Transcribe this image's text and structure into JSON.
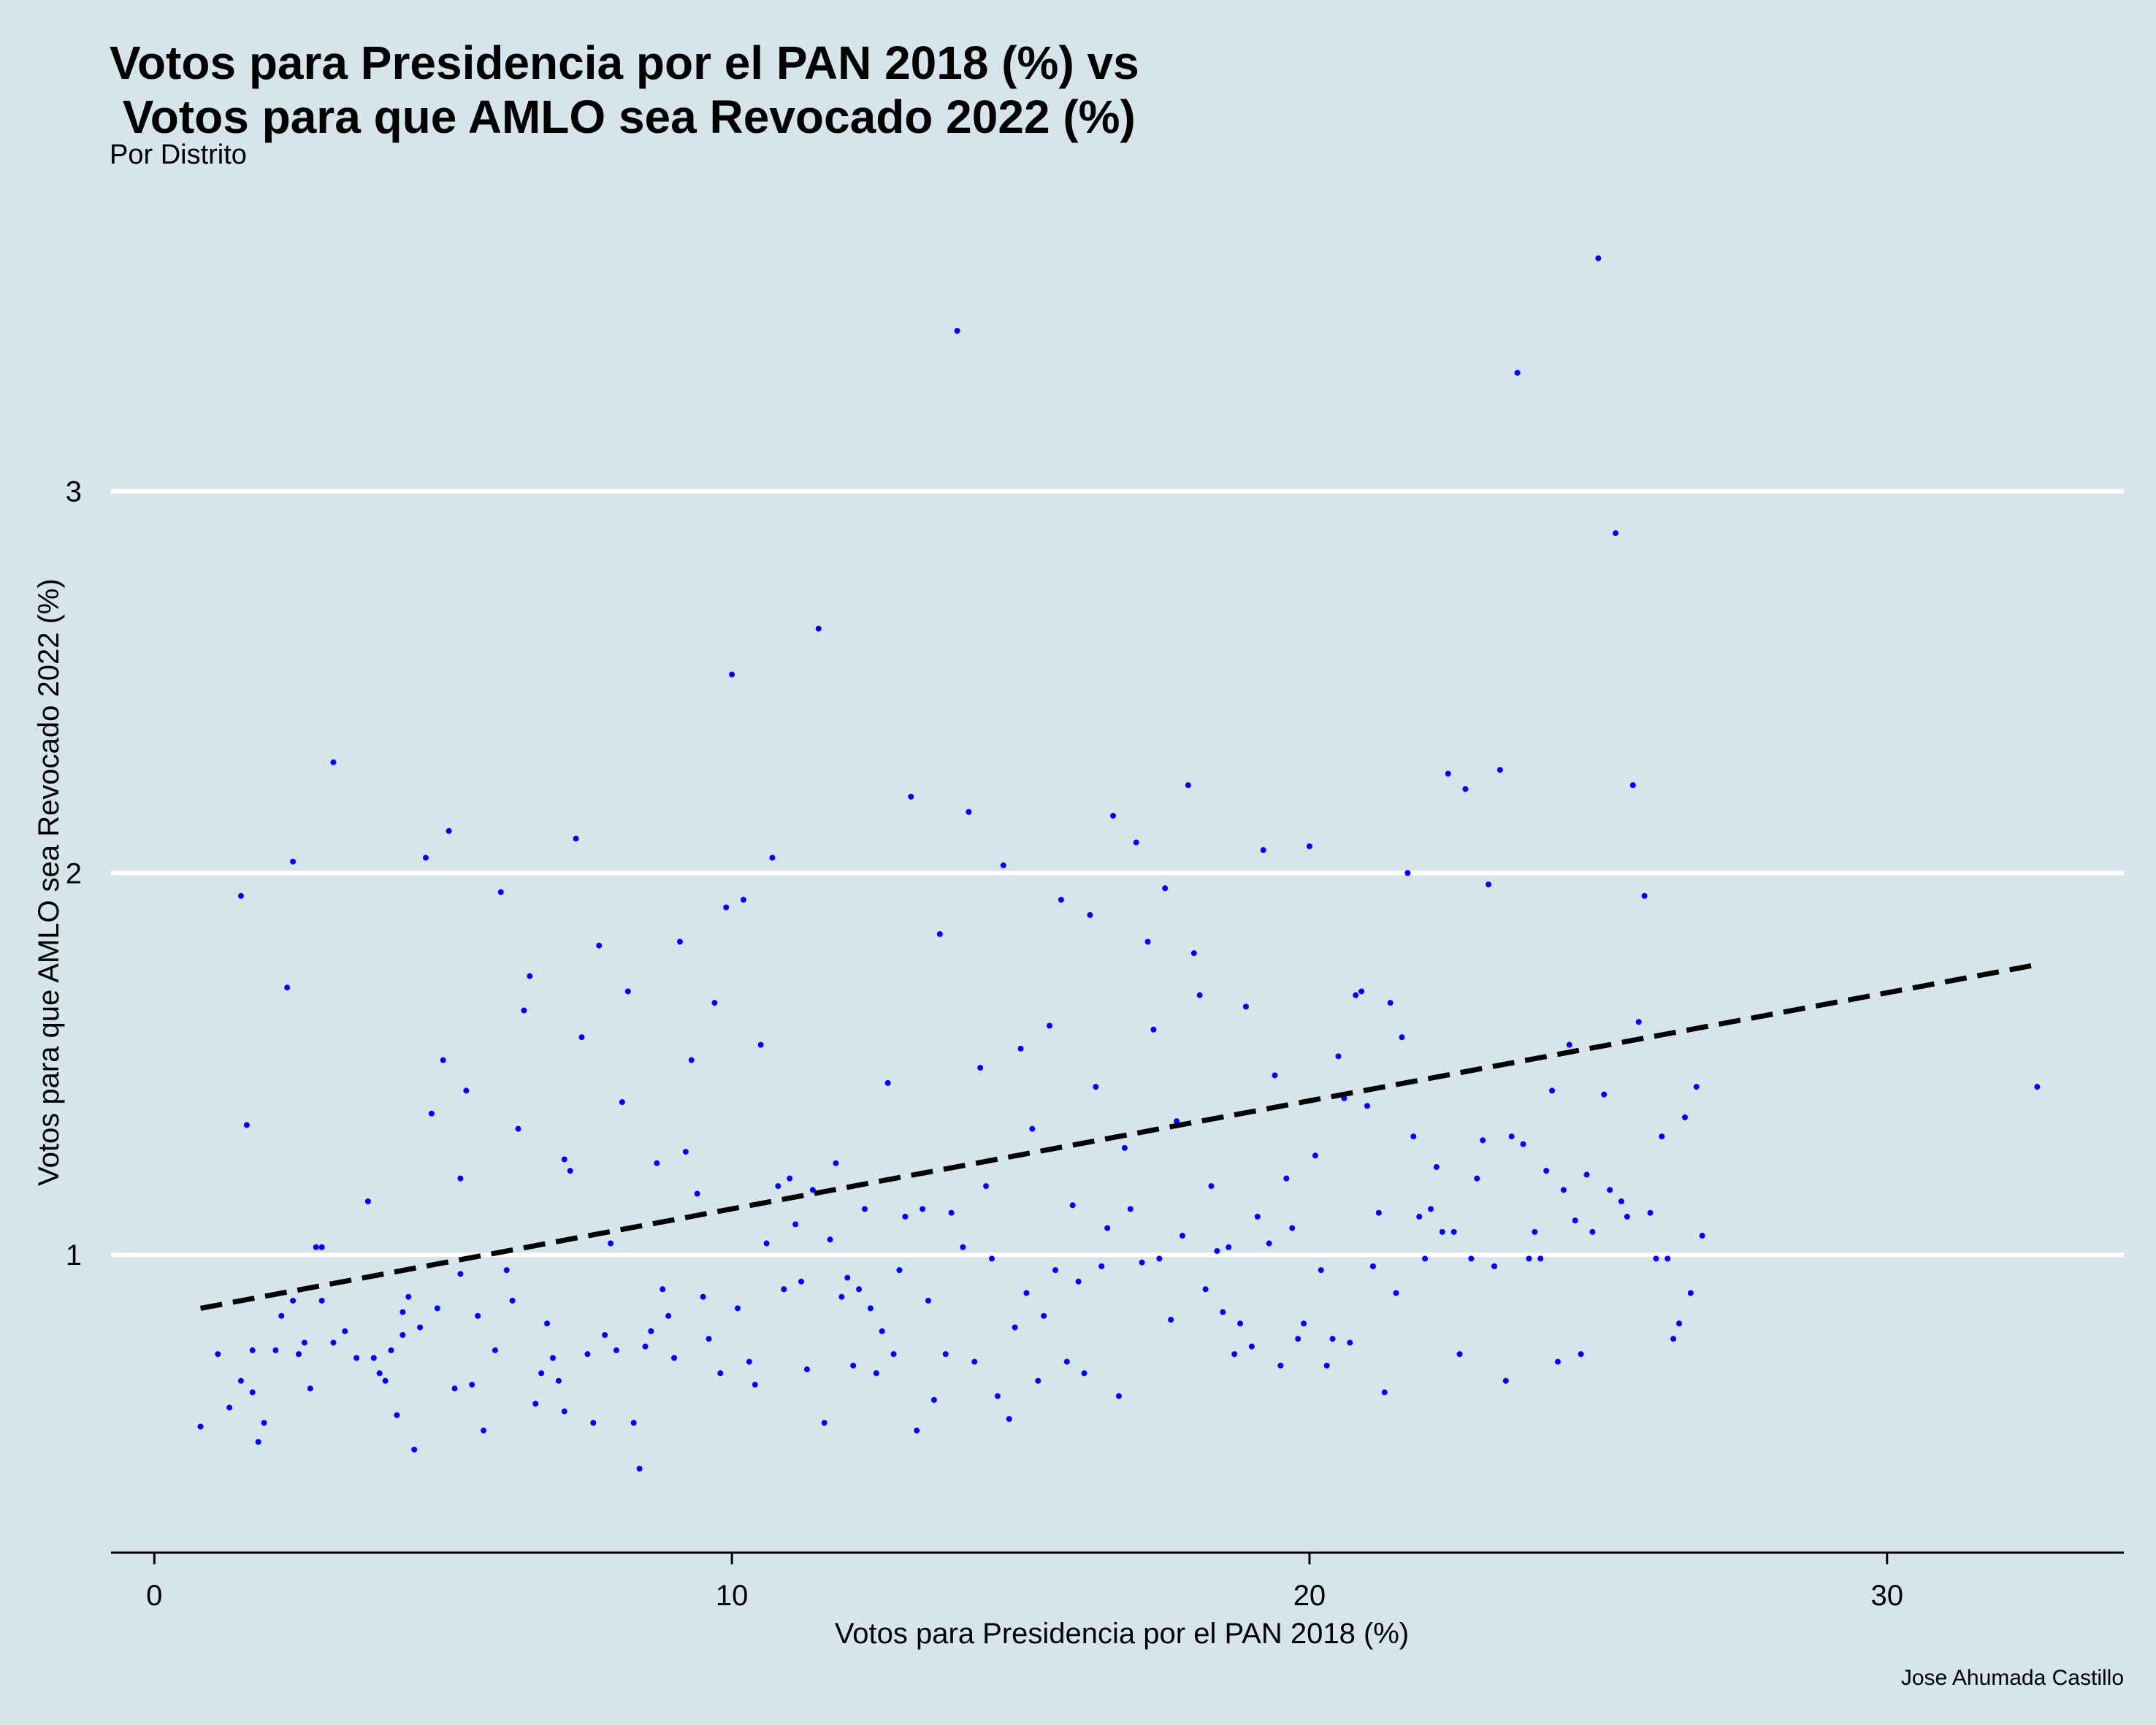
{
  "chart_data": {
    "type": "scatter",
    "title_line1": "Votos para Presidencia por el PAN 2018 (%) vs",
    "title_line2": " Votos para que AMLO sea Revocado 2022 (%)",
    "subtitle": "Por Distrito",
    "xlabel": "Votos para Presidencia por el PAN 2018 (%)",
    "ylabel": "Votos para que AMLO sea Revocado 2022 (%)",
    "caption": "Jose Ahumada Castillo",
    "xlim": [
      -0.75,
      34.1
    ],
    "ylim": [
      0.22,
      3.77
    ],
    "x_ticks": [
      0,
      10,
      20,
      30
    ],
    "x_tick_labels": [
      "0",
      "10",
      "20",
      "30"
    ],
    "y_ticks": [
      1,
      2,
      3
    ],
    "y_tick_labels": [
      "1",
      "2",
      "3"
    ],
    "grid": "horizontal major lines (white)",
    "point_color": "#0000ff",
    "line_color": "#000000",
    "trend_line": {
      "style": "dashed",
      "x": [
        0.8,
        32.6
      ],
      "y": [
        0.86,
        1.76
      ]
    },
    "points": [
      [
        0.8,
        0.55
      ],
      [
        1.1,
        0.74
      ],
      [
        1.3,
        0.6
      ],
      [
        1.5,
        0.67
      ],
      [
        1.6,
        1.34
      ],
      [
        1.7,
        0.64
      ],
      [
        1.8,
        0.51
      ],
      [
        1.9,
        0.56
      ],
      [
        1.5,
        1.94
      ],
      [
        1.7,
        0.75
      ],
      [
        2.1,
        0.75
      ],
      [
        2.2,
        0.84
      ],
      [
        2.3,
        1.7
      ],
      [
        2.4,
        2.03
      ],
      [
        2.4,
        0.88
      ],
      [
        2.5,
        0.74
      ],
      [
        2.6,
        0.77
      ],
      [
        2.7,
        0.65
      ],
      [
        2.8,
        1.02
      ],
      [
        2.9,
        1.02
      ],
      [
        2.9,
        0.88
      ],
      [
        3.1,
        0.77
      ],
      [
        3.1,
        2.29
      ],
      [
        3.3,
        0.8
      ],
      [
        3.5,
        0.73
      ],
      [
        3.7,
        1.14
      ],
      [
        3.8,
        0.73
      ],
      [
        3.9,
        0.69
      ],
      [
        4.0,
        0.67
      ],
      [
        4.1,
        0.75
      ],
      [
        4.2,
        0.58
      ],
      [
        4.3,
        0.79
      ],
      [
        4.3,
        0.85
      ],
      [
        4.4,
        0.89
      ],
      [
        4.5,
        0.49
      ],
      [
        4.6,
        0.81
      ],
      [
        4.7,
        2.04
      ],
      [
        4.8,
        1.37
      ],
      [
        4.9,
        0.86
      ],
      [
        5.0,
        1.51
      ],
      [
        5.1,
        2.11
      ],
      [
        5.2,
        0.65
      ],
      [
        5.3,
        0.95
      ],
      [
        5.3,
        1.2
      ],
      [
        5.4,
        1.43
      ],
      [
        5.5,
        0.66
      ],
      [
        5.6,
        0.84
      ],
      [
        5.7,
        0.54
      ],
      [
        5.9,
        0.75
      ],
      [
        6.0,
        1.95
      ],
      [
        6.1,
        0.96
      ],
      [
        6.2,
        0.88
      ],
      [
        6.3,
        1.33
      ],
      [
        6.4,
        1.64
      ],
      [
        6.5,
        1.73
      ],
      [
        6.6,
        0.61
      ],
      [
        6.7,
        0.69
      ],
      [
        6.8,
        0.82
      ],
      [
        6.9,
        0.73
      ],
      [
        7.0,
        0.67
      ],
      [
        7.1,
        1.25
      ],
      [
        7.1,
        0.59
      ],
      [
        7.2,
        1.22
      ],
      [
        7.3,
        2.09
      ],
      [
        7.4,
        1.57
      ],
      [
        7.5,
        0.74
      ],
      [
        7.6,
        0.56
      ],
      [
        7.7,
        1.81
      ],
      [
        7.8,
        0.79
      ],
      [
        7.9,
        1.03
      ],
      [
        8.0,
        0.75
      ],
      [
        8.1,
        1.4
      ],
      [
        8.2,
        1.69
      ],
      [
        8.3,
        0.56
      ],
      [
        8.4,
        0.44
      ],
      [
        8.5,
        0.76
      ],
      [
        8.6,
        0.8
      ],
      [
        8.7,
        1.24
      ],
      [
        8.8,
        0.91
      ],
      [
        8.9,
        0.84
      ],
      [
        9.0,
        0.73
      ],
      [
        9.1,
        1.82
      ],
      [
        9.2,
        1.27
      ],
      [
        9.3,
        1.51
      ],
      [
        9.4,
        1.16
      ],
      [
        9.5,
        0.89
      ],
      [
        9.6,
        0.78
      ],
      [
        9.7,
        1.66
      ],
      [
        9.8,
        0.69
      ],
      [
        9.9,
        1.91
      ],
      [
        10.0,
        2.52
      ],
      [
        10.1,
        0.86
      ],
      [
        10.2,
        1.93
      ],
      [
        10.3,
        0.72
      ],
      [
        10.4,
        0.66
      ],
      [
        10.5,
        1.55
      ],
      [
        10.6,
        1.03
      ],
      [
        10.7,
        2.04
      ],
      [
        10.8,
        1.18
      ],
      [
        10.9,
        0.91
      ],
      [
        11.0,
        1.2
      ],
      [
        11.1,
        1.08
      ],
      [
        11.2,
        0.93
      ],
      [
        11.3,
        0.7
      ],
      [
        11.4,
        1.17
      ],
      [
        11.5,
        2.64
      ],
      [
        11.6,
        0.56
      ],
      [
        11.7,
        1.04
      ],
      [
        11.8,
        1.24
      ],
      [
        11.9,
        0.89
      ],
      [
        12.0,
        0.94
      ],
      [
        12.1,
        0.71
      ],
      [
        12.2,
        0.91
      ],
      [
        12.3,
        1.12
      ],
      [
        12.4,
        0.86
      ],
      [
        12.5,
        0.69
      ],
      [
        12.6,
        0.8
      ],
      [
        12.7,
        1.45
      ],
      [
        12.8,
        0.74
      ],
      [
        12.9,
        0.96
      ],
      [
        13.0,
        1.1
      ],
      [
        13.1,
        2.2
      ],
      [
        13.2,
        0.54
      ],
      [
        13.3,
        1.12
      ],
      [
        13.4,
        0.88
      ],
      [
        13.5,
        0.62
      ],
      [
        13.6,
        1.84
      ],
      [
        13.7,
        0.74
      ],
      [
        13.8,
        1.11
      ],
      [
        13.9,
        3.42
      ],
      [
        14.0,
        1.02
      ],
      [
        14.1,
        2.16
      ],
      [
        14.2,
        0.72
      ],
      [
        14.3,
        1.49
      ],
      [
        14.4,
        1.18
      ],
      [
        14.5,
        0.99
      ],
      [
        14.6,
        0.63
      ],
      [
        14.7,
        2.02
      ],
      [
        14.8,
        0.57
      ],
      [
        14.9,
        0.81
      ],
      [
        15.0,
        1.54
      ],
      [
        15.1,
        0.9
      ],
      [
        15.2,
        1.33
      ],
      [
        15.3,
        0.67
      ],
      [
        15.4,
        0.84
      ],
      [
        15.5,
        1.6
      ],
      [
        15.6,
        0.96
      ],
      [
        15.7,
        1.93
      ],
      [
        15.8,
        0.72
      ],
      [
        15.9,
        1.13
      ],
      [
        16.0,
        0.93
      ],
      [
        16.1,
        0.69
      ],
      [
        16.2,
        1.89
      ],
      [
        16.3,
        1.44
      ],
      [
        16.4,
        0.97
      ],
      [
        16.5,
        1.07
      ],
      [
        16.6,
        2.15
      ],
      [
        16.7,
        0.63
      ],
      [
        16.8,
        1.28
      ],
      [
        16.9,
        1.12
      ],
      [
        17.0,
        2.08
      ],
      [
        17.1,
        0.98
      ],
      [
        17.2,
        1.82
      ],
      [
        17.3,
        1.59
      ],
      [
        17.4,
        0.99
      ],
      [
        17.5,
        1.96
      ],
      [
        17.6,
        0.83
      ],
      [
        17.7,
        1.35
      ],
      [
        17.8,
        1.05
      ],
      [
        17.9,
        2.23
      ],
      [
        18.0,
        1.79
      ],
      [
        18.1,
        1.68
      ],
      [
        18.2,
        0.91
      ],
      [
        18.3,
        1.18
      ],
      [
        18.4,
        1.01
      ],
      [
        18.5,
        0.85
      ],
      [
        18.6,
        1.02
      ],
      [
        18.7,
        0.74
      ],
      [
        18.8,
        0.82
      ],
      [
        18.9,
        1.65
      ],
      [
        19.0,
        0.76
      ],
      [
        19.1,
        1.1
      ],
      [
        19.2,
        2.06
      ],
      [
        19.3,
        1.03
      ],
      [
        19.4,
        1.47
      ],
      [
        19.5,
        0.71
      ],
      [
        19.6,
        1.2
      ],
      [
        19.7,
        1.07
      ],
      [
        19.8,
        0.78
      ],
      [
        19.9,
        0.82
      ],
      [
        20.0,
        2.07
      ],
      [
        20.1,
        1.26
      ],
      [
        20.2,
        0.96
      ],
      [
        20.3,
        0.71
      ],
      [
        20.4,
        0.78
      ],
      [
        20.5,
        1.52
      ],
      [
        20.6,
        1.41
      ],
      [
        20.7,
        0.77
      ],
      [
        20.8,
        1.68
      ],
      [
        20.9,
        1.69
      ],
      [
        21.0,
        1.39
      ],
      [
        21.1,
        0.97
      ],
      [
        21.2,
        1.11
      ],
      [
        21.3,
        0.64
      ],
      [
        21.4,
        1.66
      ],
      [
        21.5,
        0.9
      ],
      [
        21.6,
        1.57
      ],
      [
        21.7,
        2.0
      ],
      [
        21.8,
        1.31
      ],
      [
        21.9,
        1.1
      ],
      [
        22.0,
        0.99
      ],
      [
        22.1,
        1.12
      ],
      [
        22.2,
        1.23
      ],
      [
        22.3,
        1.06
      ],
      [
        22.4,
        2.26
      ],
      [
        22.5,
        1.06
      ],
      [
        22.6,
        0.74
      ],
      [
        22.7,
        2.22
      ],
      [
        22.8,
        0.99
      ],
      [
        22.9,
        1.2
      ],
      [
        23.0,
        1.3
      ],
      [
        23.1,
        1.97
      ],
      [
        23.2,
        0.97
      ],
      [
        23.3,
        2.27
      ],
      [
        23.4,
        0.67
      ],
      [
        23.5,
        1.31
      ],
      [
        23.6,
        3.31
      ],
      [
        23.7,
        1.29
      ],
      [
        23.8,
        0.99
      ],
      [
        23.9,
        1.06
      ],
      [
        24.0,
        0.99
      ],
      [
        24.1,
        1.22
      ],
      [
        24.2,
        1.43
      ],
      [
        24.3,
        0.72
      ],
      [
        24.4,
        1.17
      ],
      [
        24.5,
        1.55
      ],
      [
        24.6,
        1.09
      ],
      [
        24.7,
        0.74
      ],
      [
        24.8,
        1.21
      ],
      [
        24.9,
        1.06
      ],
      [
        25.0,
        3.61
      ],
      [
        25.1,
        1.42
      ],
      [
        25.2,
        1.17
      ],
      [
        25.3,
        2.89
      ],
      [
        25.4,
        1.14
      ],
      [
        25.5,
        1.1
      ],
      [
        25.6,
        2.23
      ],
      [
        25.7,
        1.61
      ],
      [
        25.8,
        1.94
      ],
      [
        25.9,
        1.11
      ],
      [
        26.0,
        0.99
      ],
      [
        26.1,
        1.31
      ],
      [
        26.2,
        0.99
      ],
      [
        26.3,
        0.78
      ],
      [
        26.4,
        0.82
      ],
      [
        26.5,
        1.36
      ],
      [
        26.6,
        0.9
      ],
      [
        26.7,
        1.44
      ],
      [
        26.8,
        1.05
      ],
      [
        32.6,
        1.44
      ]
    ]
  }
}
